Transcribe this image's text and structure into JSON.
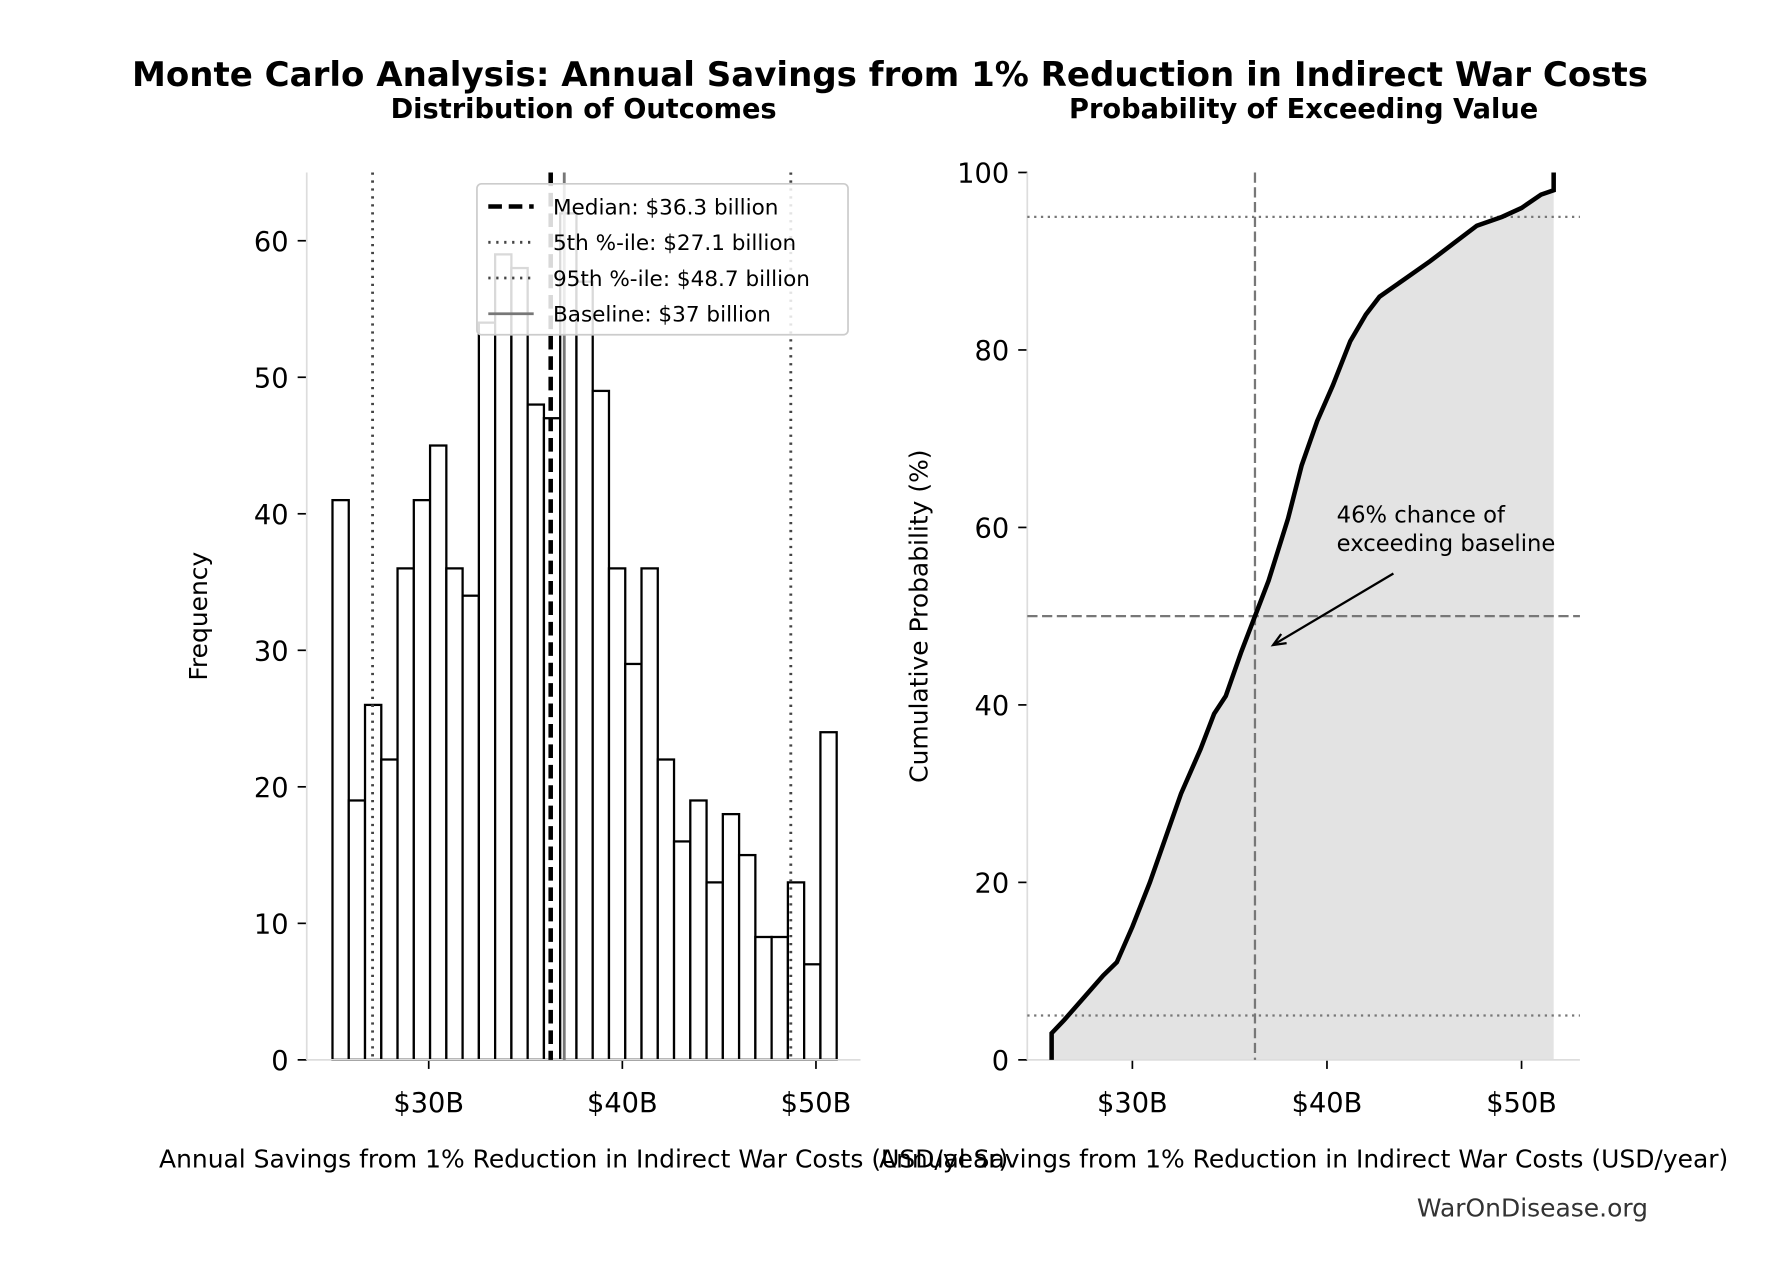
{
  "title": "Monte Carlo Analysis: Annual Savings from 1% Reduction in Indirect War Costs",
  "source": "WarOnDisease.org",
  "chart_data": [
    {
      "type": "histogram",
      "title": "Distribution of Outcomes",
      "x_label": "Annual Savings from 1% Reduction in Indirect War Costs (USD/year)",
      "y_label": "Frequency",
      "bins": [
        25.03,
        25.87,
        26.71,
        27.55,
        28.39,
        29.23,
        30.07,
        30.91,
        31.75,
        32.59,
        33.43,
        34.27,
        35.11,
        35.95,
        36.79,
        37.63,
        38.47,
        39.31,
        40.15,
        40.99,
        41.83,
        42.67,
        43.51,
        44.35,
        45.19,
        46.03,
        46.87,
        47.71,
        48.55,
        49.39,
        50.23,
        51.07
      ],
      "counts": [
        41,
        19,
        26,
        22,
        36,
        41,
        45,
        36,
        34,
        54,
        59,
        58,
        48,
        47,
        62,
        57,
        49,
        36,
        29,
        36,
        22,
        16,
        19,
        13,
        18,
        15,
        9,
        9,
        13,
        7,
        24
      ],
      "color": "#ffffff",
      "edgecolor": "#000000",
      "xlim": [
        23.7,
        52.3
      ],
      "xticks": [
        {
          "value": 30,
          "label": "$30B"
        },
        {
          "value": 40,
          "label": "$40B"
        },
        {
          "value": 50,
          "label": "$50B"
        }
      ],
      "ylim": [
        0,
        65
      ],
      "yticks": [
        0,
        10,
        20,
        30,
        40,
        50,
        60
      ],
      "reference_lines": [
        {
          "name": "Median: $36.3 billion",
          "x": 36.3,
          "style": "dashed",
          "color": "#000000"
        },
        {
          "name": "5th %-ile: $27.1 billion",
          "x": 27.1,
          "style": "dotted",
          "color": "#444444"
        },
        {
          "name": "95th %-ile: $48.7 billion",
          "x": 48.7,
          "style": "dotted",
          "color": "#444444"
        },
        {
          "name": "Baseline: $37 billion",
          "x": 37,
          "style": "solid",
          "color": "#777777"
        }
      ],
      "legend": "upper right"
    },
    {
      "type": "step",
      "title": "Probability of Exceeding Value",
      "x_label": "Annual Savings from 1% Reduction in Indirect War Costs (USD/year)",
      "y_label": "Cumulative Probability (%)",
      "x": [
        25.85,
        25.85,
        26.5,
        27.5,
        28.5,
        29.2,
        30,
        30.9,
        31.7,
        32.5,
        33.5,
        34.2,
        34.8,
        35.6,
        36.3,
        37,
        38,
        38.7,
        39.5,
        40.3,
        41.2,
        42,
        42.7,
        44,
        45.3,
        46.5,
        47.7,
        49,
        50,
        51,
        51.65,
        51.65
      ],
      "y": [
        0,
        3,
        4.5,
        7,
        9.5,
        11,
        15,
        20,
        25,
        30,
        35,
        39,
        41,
        46,
        50,
        54,
        61,
        67,
        72,
        76,
        81,
        84,
        86,
        88,
        90,
        92,
        94,
        95,
        96,
        97.5,
        98,
        100
      ],
      "color": "#000000",
      "fill": "#e3e3e3",
      "xlim": [
        24.6,
        53.0
      ],
      "xticks": [
        {
          "value": 30,
          "label": "$30B"
        },
        {
          "value": 40,
          "label": "$40B"
        },
        {
          "value": 50,
          "label": "$50B"
        }
      ],
      "ylim": [
        0,
        100
      ],
      "yticks": [
        0,
        20,
        40,
        60,
        80,
        100
      ],
      "vlines": [
        {
          "x": 36.3,
          "style": "dashed"
        }
      ],
      "hlines": [
        {
          "y": 5,
          "style": "dotted"
        },
        {
          "y": 50,
          "style": "dashed"
        },
        {
          "y": 95,
          "style": "dotted"
        }
      ],
      "annotation": {
        "text": [
          "46% chance of",
          "exceeding baseline"
        ],
        "xy": [
          37,
          46.5
        ]
      }
    }
  ]
}
